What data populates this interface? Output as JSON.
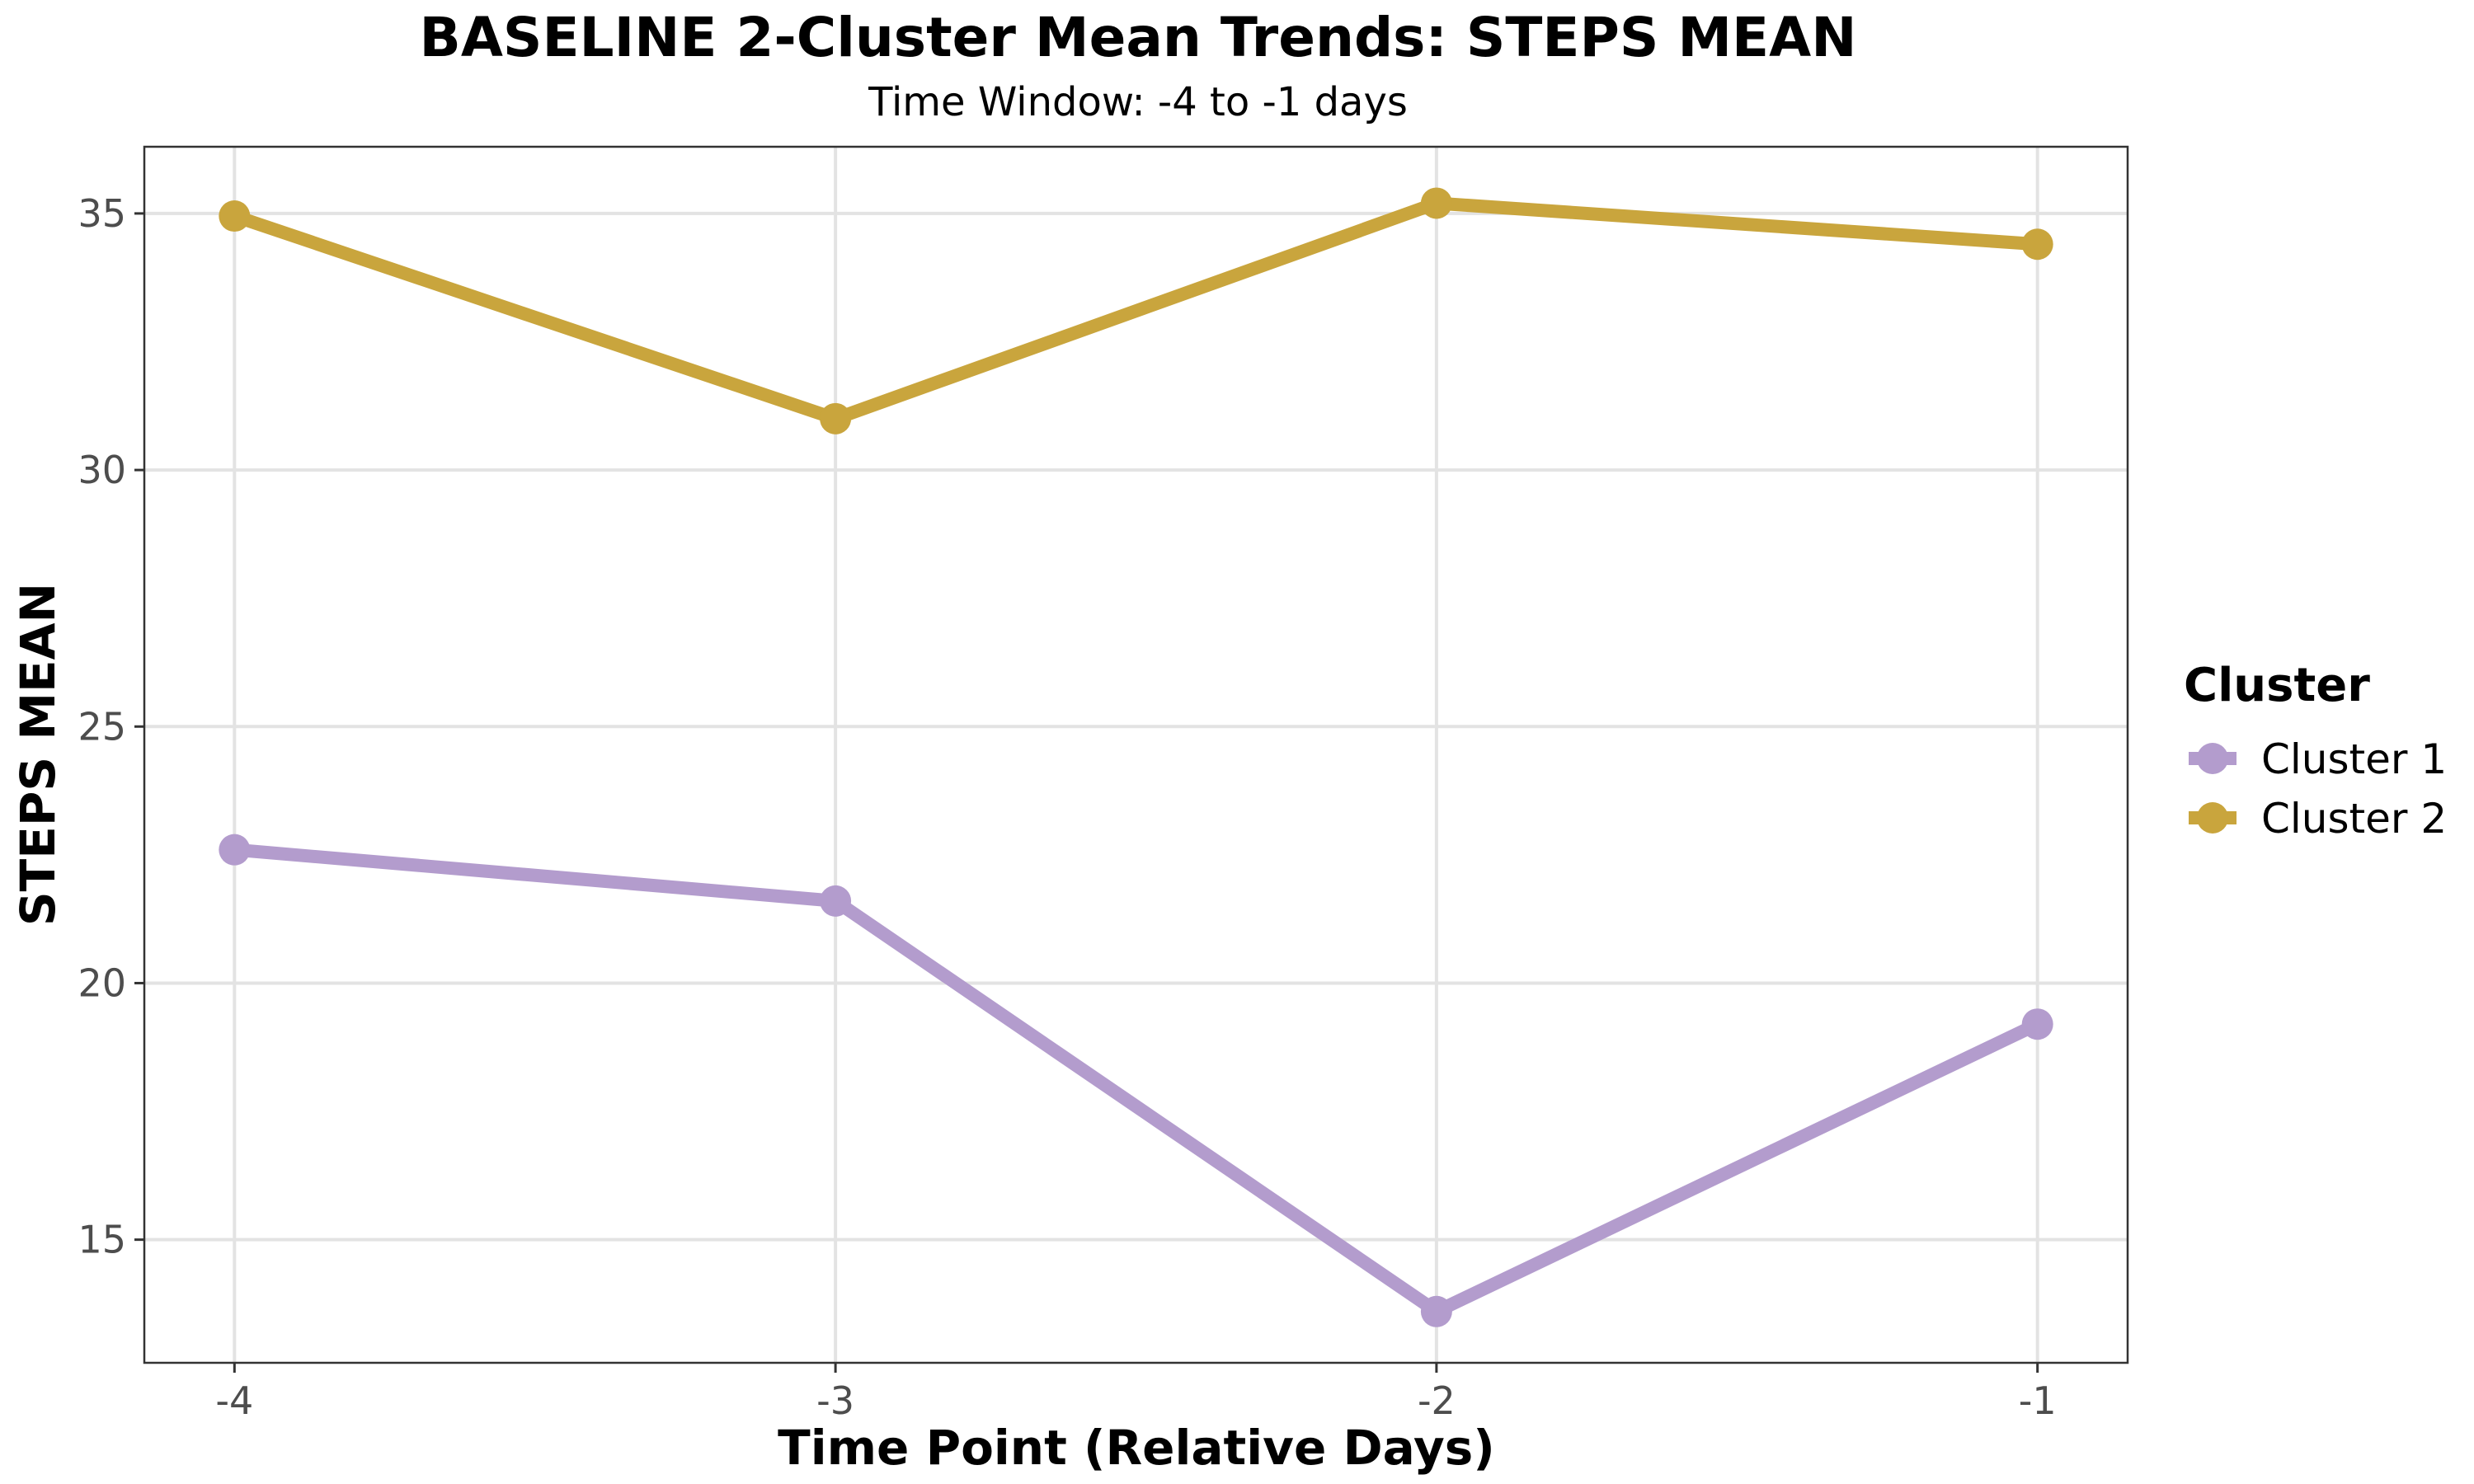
{
  "chart_data": {
    "type": "line",
    "title": "BASELINE 2-Cluster Mean Trends: STEPS MEAN",
    "subtitle": "Time Window: -4 to -1 days",
    "xlabel": "Time Point (Relative Days)",
    "ylabel": "STEPS MEAN",
    "x": [
      -4,
      -3,
      -2,
      -1
    ],
    "x_tick_labels": [
      "-4",
      "-3",
      "-2",
      "-1"
    ],
    "xlim": [
      -4.15,
      -0.85
    ],
    "y_ticks": [
      15,
      20,
      25,
      30,
      35
    ],
    "y_tick_labels": [
      "15",
      "20",
      "25",
      "30",
      "35"
    ],
    "ylim": [
      12.6,
      36.3
    ],
    "grid": true,
    "legend_title": "Cluster",
    "legend_position": "right",
    "series": [
      {
        "name": "Cluster 1",
        "color": "#b39ccd",
        "values": [
          22.6,
          21.6,
          13.6,
          19.2
        ]
      },
      {
        "name": "Cluster 2",
        "color": "#c9a53d",
        "values": [
          34.95,
          31.0,
          35.2,
          34.4
        ]
      }
    ]
  }
}
